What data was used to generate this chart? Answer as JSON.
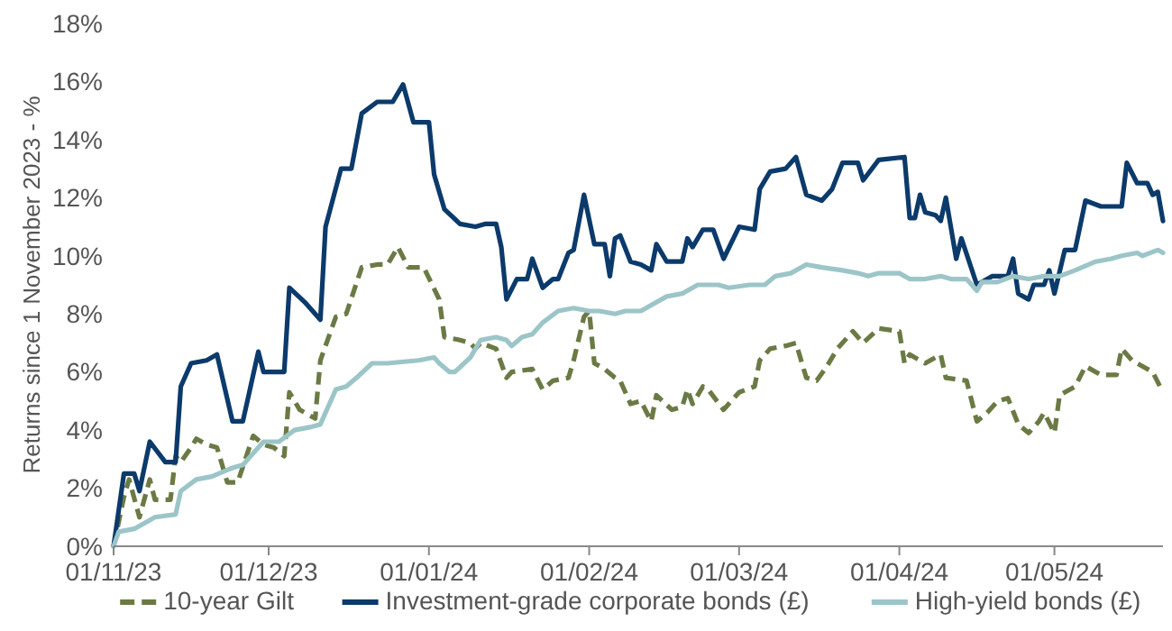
{
  "chart_data": {
    "type": "line",
    "ylabel": "Returns since 1 November 2023 - %",
    "xlim": [
      "2023-11-01",
      "2024-05-22"
    ],
    "xticks": [
      {
        "value": "2023-11-01",
        "label": "01/11/23"
      },
      {
        "value": "2023-12-01",
        "label": "01/12/23"
      },
      {
        "value": "2024-01-01",
        "label": "01/01/24"
      },
      {
        "value": "2024-02-01",
        "label": "01/02/24"
      },
      {
        "value": "2024-03-01",
        "label": "01/03/24"
      },
      {
        "value": "2024-04-01",
        "label": "01/04/24"
      },
      {
        "value": "2024-05-01",
        "label": "01/05/24"
      }
    ],
    "ylim": [
      0,
      18
    ],
    "yticks": [
      {
        "value": 0,
        "label": "0%"
      },
      {
        "value": 2,
        "label": "2%"
      },
      {
        "value": 4,
        "label": "4%"
      },
      {
        "value": 6,
        "label": "6%"
      },
      {
        "value": 8,
        "label": "8%"
      },
      {
        "value": 10,
        "label": "10%"
      },
      {
        "value": 12,
        "label": "12%"
      },
      {
        "value": 14,
        "label": "14%"
      },
      {
        "value": 16,
        "label": "16%"
      },
      {
        "value": 18,
        "label": "18%"
      }
    ],
    "grid": false,
    "legend": "bottom",
    "marker": "none",
    "series": [
      {
        "name": "10-year Gilt",
        "color": "#6b7a45",
        "line_style": "dashed",
        "x": [
          "2023-11-01",
          "2023-11-03",
          "2023-11-04",
          "2023-11-06",
          "2023-11-08",
          "2023-11-09",
          "2023-11-12",
          "2023-11-13",
          "2023-11-14",
          "2023-11-16",
          "2023-11-17",
          "2023-11-19",
          "2023-11-21",
          "2023-11-23",
          "2023-11-25",
          "2023-11-28",
          "2023-11-30",
          "2023-12-02",
          "2023-12-04",
          "2023-12-05",
          "2023-12-07",
          "2023-12-10",
          "2023-12-11",
          "2023-12-14",
          "2023-12-16",
          "2023-12-19",
          "2023-12-22",
          "2023-12-24",
          "2023-12-26",
          "2023-12-28",
          "2023-12-31",
          "2024-01-03",
          "2024-01-04",
          "2024-01-07",
          "2024-01-09",
          "2024-01-10",
          "2024-01-11",
          "2024-01-14",
          "2024-01-16",
          "2024-01-17",
          "2024-01-21",
          "2024-01-23",
          "2024-01-25",
          "2024-01-28",
          "2024-01-29",
          "2024-01-31",
          "2024-02-01",
          "2024-02-02",
          "2024-02-04",
          "2024-02-06",
          "2024-02-07",
          "2024-02-09",
          "2024-02-11",
          "2024-02-13",
          "2024-02-14",
          "2024-02-17",
          "2024-02-19",
          "2024-02-20",
          "2024-02-21",
          "2024-02-23",
          "2024-02-24",
          "2024-02-27",
          "2024-03-01",
          "2024-03-04",
          "2024-03-05",
          "2024-03-07",
          "2024-03-10",
          "2024-03-12",
          "2024-03-14",
          "2024-03-16",
          "2024-03-18",
          "2024-03-20",
          "2024-03-23",
          "2024-03-25",
          "2024-03-28",
          "2024-04-01",
          "2024-04-02",
          "2024-04-03",
          "2024-04-06",
          "2024-04-09",
          "2024-04-10",
          "2024-04-14",
          "2024-04-16",
          "2024-04-18",
          "2024-04-20",
          "2024-04-22",
          "2024-04-24",
          "2024-04-26",
          "2024-04-28",
          "2024-04-29",
          "2024-05-01",
          "2024-05-02",
          "2024-05-05",
          "2024-05-07",
          "2024-05-10",
          "2024-05-13",
          "2024-05-14",
          "2024-05-16",
          "2024-05-18",
          "2024-05-20",
          "2024-05-22"
        ],
        "values": [
          0,
          1.7,
          2.3,
          1.0,
          2.3,
          1.6,
          1.6,
          3.1,
          2.9,
          3.4,
          3.7,
          3.5,
          3.4,
          2.2,
          2.2,
          3.8,
          3.5,
          3.4,
          3.1,
          5.3,
          4.7,
          4.4,
          6.4,
          7.9,
          8.0,
          9.6,
          9.7,
          9.7,
          10.3,
          9.6,
          9.6,
          8.5,
          7.2,
          7.1,
          7.0,
          6.8,
          7.0,
          6.8,
          5.8,
          6.0,
          6.1,
          5.4,
          5.7,
          5.8,
          6.4,
          7.9,
          8.1,
          6.3,
          6.1,
          5.8,
          5.7,
          4.9,
          5.0,
          4.3,
          5.2,
          4.7,
          4.8,
          5.4,
          4.9,
          5.5,
          5.4,
          4.7,
          5.3,
          5.5,
          6.4,
          6.8,
          6.9,
          7.0,
          5.8,
          5.7,
          6.2,
          6.8,
          7.4,
          7.0,
          7.5,
          7.4,
          6.3,
          6.6,
          6.3,
          6.6,
          5.8,
          5.7,
          4.3,
          4.6,
          5.0,
          5.1,
          4.2,
          3.9,
          4.3,
          4.6,
          3.9,
          5.2,
          5.5,
          6.2,
          5.9,
          5.9,
          6.8,
          6.4,
          6.2,
          6.0,
          5.3
        ]
      },
      {
        "name": "Investment-grade corporate bonds (£)",
        "color": "#0b3a6b",
        "line_style": "solid",
        "x": [
          "2023-11-01",
          "2023-11-03",
          "2023-11-05",
          "2023-11-06",
          "2023-11-08",
          "2023-11-11",
          "2023-11-13",
          "2023-11-14",
          "2023-11-16",
          "2023-11-19",
          "2023-11-21",
          "2023-11-24",
          "2023-11-26",
          "2023-11-29",
          "2023-11-30",
          "2023-12-04",
          "2023-12-05",
          "2023-12-08",
          "2023-12-11",
          "2023-12-12",
          "2023-12-15",
          "2023-12-17",
          "2023-12-19",
          "2023-12-22",
          "2023-12-25",
          "2023-12-27",
          "2023-12-29",
          "2024-01-01",
          "2024-01-02",
          "2024-01-04",
          "2024-01-07",
          "2024-01-10",
          "2024-01-12",
          "2024-01-14",
          "2024-01-15",
          "2024-01-16",
          "2024-01-18",
          "2024-01-20",
          "2024-01-21",
          "2024-01-23",
          "2024-01-25",
          "2024-01-26",
          "2024-01-28",
          "2024-01-29",
          "2024-01-31",
          "2024-02-02",
          "2024-02-04",
          "2024-02-05",
          "2024-02-06",
          "2024-02-07",
          "2024-02-09",
          "2024-02-11",
          "2024-02-13",
          "2024-02-14",
          "2024-02-16",
          "2024-02-19",
          "2024-02-20",
          "2024-02-21",
          "2024-02-23",
          "2024-02-25",
          "2024-02-27",
          "2024-03-01",
          "2024-03-04",
          "2024-03-05",
          "2024-03-07",
          "2024-03-10",
          "2024-03-12",
          "2024-03-14",
          "2024-03-17",
          "2024-03-19",
          "2024-03-21",
          "2024-03-24",
          "2024-03-25",
          "2024-03-28",
          "2024-04-02",
          "2024-04-03",
          "2024-04-04",
          "2024-04-05",
          "2024-04-06",
          "2024-04-08",
          "2024-04-09",
          "2024-04-10",
          "2024-04-12",
          "2024-04-13",
          "2024-04-16",
          "2024-04-19",
          "2024-04-22",
          "2024-04-23",
          "2024-04-24",
          "2024-04-26",
          "2024-04-27",
          "2024-04-29",
          "2024-04-30",
          "2024-05-01",
          "2024-05-03",
          "2024-05-05",
          "2024-05-07",
          "2024-05-10",
          "2024-05-14",
          "2024-05-15",
          "2024-05-17",
          "2024-05-19",
          "2024-05-20",
          "2024-05-21",
          "2024-05-22"
        ],
        "values": [
          0,
          2.5,
          2.5,
          1.9,
          3.6,
          2.9,
          2.9,
          5.5,
          6.3,
          6.4,
          6.6,
          4.3,
          4.3,
          6.7,
          6.0,
          6.0,
          8.9,
          8.4,
          7.8,
          11.0,
          13.0,
          13.0,
          14.9,
          15.3,
          15.3,
          15.9,
          14.6,
          14.6,
          12.8,
          11.6,
          11.1,
          11.0,
          11.1,
          11.1,
          10.3,
          8.5,
          9.2,
          9.2,
          9.9,
          8.9,
          9.2,
          9.2,
          10.1,
          10.2,
          12.1,
          10.4,
          10.4,
          9.3,
          10.6,
          10.7,
          9.8,
          9.7,
          9.5,
          10.4,
          9.8,
          9.8,
          10.6,
          10.3,
          10.9,
          10.9,
          9.9,
          11.0,
          10.9,
          12.3,
          12.9,
          13.0,
          13.4,
          12.1,
          11.9,
          12.3,
          13.2,
          13.2,
          12.6,
          13.3,
          13.4,
          11.3,
          11.3,
          12.1,
          11.5,
          11.4,
          11.2,
          12.0,
          9.9,
          10.6,
          9.0,
          9.3,
          9.3,
          9.9,
          8.7,
          8.5,
          9.0,
          9.0,
          9.5,
          8.7,
          10.2,
          10.2,
          11.9,
          11.7,
          11.7,
          13.2,
          12.5,
          12.5,
          12.1,
          12.2,
          11.2
        ]
      },
      {
        "name": "High-yield bonds (£)",
        "color": "#9cc5c8",
        "line_style": "solid",
        "x": [
          "2023-11-01",
          "2023-11-02",
          "2023-11-05",
          "2023-11-07",
          "2023-11-09",
          "2023-11-13",
          "2023-11-14",
          "2023-11-17",
          "2023-11-20",
          "2023-11-24",
          "2023-11-26",
          "2023-11-30",
          "2023-12-03",
          "2023-12-06",
          "2023-12-09",
          "2023-12-11",
          "2023-12-14",
          "2023-12-16",
          "2023-12-18",
          "2023-12-21",
          "2023-12-24",
          "2023-12-30",
          "2024-01-02",
          "2024-01-03",
          "2024-01-05",
          "2024-01-06",
          "2024-01-09",
          "2024-01-11",
          "2024-01-14",
          "2024-01-16",
          "2024-01-17",
          "2024-01-19",
          "2024-01-21",
          "2024-01-23",
          "2024-01-26",
          "2024-01-29",
          "2024-02-01",
          "2024-02-03",
          "2024-02-06",
          "2024-02-08",
          "2024-02-11",
          "2024-02-13",
          "2024-02-16",
          "2024-02-19",
          "2024-02-22",
          "2024-02-26",
          "2024-02-28",
          "2024-03-03",
          "2024-03-06",
          "2024-03-08",
          "2024-03-11",
          "2024-03-14",
          "2024-03-17",
          "2024-03-21",
          "2024-03-24",
          "2024-03-26",
          "2024-03-28",
          "2024-04-01",
          "2024-04-03",
          "2024-04-06",
          "2024-04-09",
          "2024-04-11",
          "2024-04-14",
          "2024-04-16",
          "2024-04-17",
          "2024-04-20",
          "2024-04-23",
          "2024-04-26",
          "2024-04-29",
          "2024-05-02",
          "2024-05-05",
          "2024-05-09",
          "2024-05-12",
          "2024-05-14",
          "2024-05-17",
          "2024-05-18",
          "2024-05-21",
          "2024-05-22"
        ],
        "values": [
          0,
          0.5,
          0.6,
          0.8,
          1.0,
          1.1,
          1.9,
          2.3,
          2.4,
          2.7,
          2.8,
          3.6,
          3.6,
          4.0,
          4.1,
          4.2,
          5.4,
          5.5,
          5.8,
          6.3,
          6.3,
          6.4,
          6.5,
          6.3,
          6.0,
          6.0,
          6.5,
          7.1,
          7.2,
          7.1,
          6.9,
          7.2,
          7.3,
          7.7,
          8.1,
          8.2,
          8.1,
          8.1,
          8.0,
          8.1,
          8.1,
          8.3,
          8.6,
          8.7,
          9.0,
          9.0,
          8.9,
          9.0,
          9.0,
          9.3,
          9.4,
          9.7,
          9.6,
          9.5,
          9.4,
          9.3,
          9.4,
          9.4,
          9.2,
          9.2,
          9.3,
          9.2,
          9.2,
          8.8,
          9.1,
          9.1,
          9.3,
          9.2,
          9.3,
          9.3,
          9.5,
          9.8,
          9.9,
          10.0,
          10.1,
          10.0,
          10.2,
          10.1
        ]
      }
    ]
  }
}
